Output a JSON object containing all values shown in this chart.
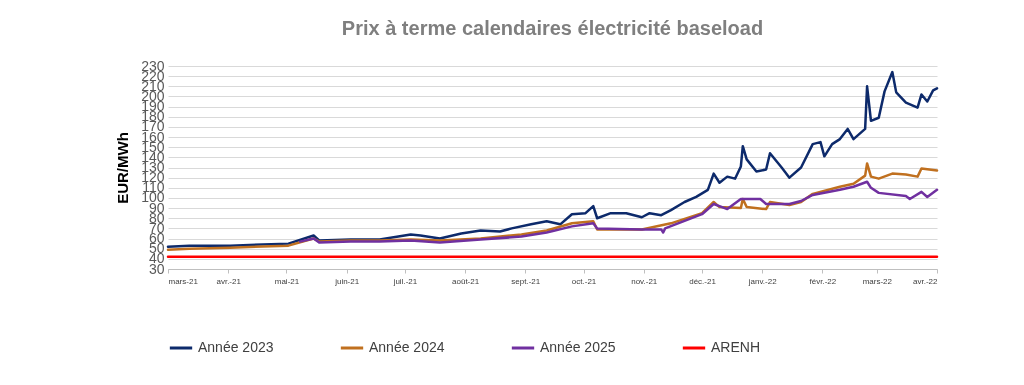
{
  "chart_data": {
    "type": "line",
    "title": "Prix à terme calendaires électricité baseload",
    "ylabel": "EUR/MWh",
    "xlim": [
      "2021-03-01",
      "2022-04-01"
    ],
    "xticks": [
      {
        "value": "2021-03-01",
        "label": "mars-21"
      },
      {
        "value": "2021-04-01",
        "label": "avr.-21"
      },
      {
        "value": "2021-05-01",
        "label": "mai-21"
      },
      {
        "value": "2021-06-01",
        "label": "juin-21"
      },
      {
        "value": "2021-07-01",
        "label": "juil.-21"
      },
      {
        "value": "2021-08-01",
        "label": "août-21"
      },
      {
        "value": "2021-09-01",
        "label": "sept.-21"
      },
      {
        "value": "2021-10-01",
        "label": "oct.-21"
      },
      {
        "value": "2021-11-01",
        "label": "nov.-21"
      },
      {
        "value": "2021-12-01",
        "label": "déc.-21"
      },
      {
        "value": "2022-01-01",
        "label": "janv.-22"
      },
      {
        "value": "2022-02-01",
        "label": "févr.-22"
      },
      {
        "value": "2022-03-01",
        "label": "mars-22"
      },
      {
        "value": "2022-04-01",
        "label": "avr.-22"
      }
    ],
    "ylim": [
      30,
      230
    ],
    "yticks": [
      30,
      40,
      50,
      60,
      70,
      80,
      90,
      100,
      110,
      120,
      130,
      140,
      150,
      160,
      170,
      180,
      190,
      200,
      210,
      220,
      230
    ],
    "grid": "y",
    "legend": "bottom",
    "series": [
      {
        "name": "Année 2023",
        "color": "#0d2a6b",
        "x": [
          "2021-03-01",
          "2021-03-12",
          "2021-04-02",
          "2021-05-02",
          "2021-05-15",
          "2021-05-18",
          "2021-06-03",
          "2021-06-18",
          "2021-07-04",
          "2021-07-09",
          "2021-07-19",
          "2021-07-30",
          "2021-08-09",
          "2021-08-19",
          "2021-08-25",
          "2021-09-04",
          "2021-09-12",
          "2021-09-19",
          "2021-09-25",
          "2021-10-02",
          "2021-10-06",
          "2021-10-08",
          "2021-10-15",
          "2021-10-23",
          "2021-10-31",
          "2021-11-04",
          "2021-11-10",
          "2021-11-15",
          "2021-11-22",
          "2021-11-28",
          "2021-12-04",
          "2021-12-07",
          "2021-12-10",
          "2021-12-14",
          "2021-12-18",
          "2021-12-21",
          "2021-12-22",
          "2021-12-24",
          "2021-12-29",
          "2022-01-03",
          "2022-01-05",
          "2022-01-11",
          "2022-01-15",
          "2022-01-21",
          "2022-01-27",
          "2022-01-31",
          "2022-02-02",
          "2022-02-06",
          "2022-02-10",
          "2022-02-14",
          "2022-02-17",
          "2022-02-23",
          "2022-02-24",
          "2022-02-26",
          "2022-03-02",
          "2022-03-05",
          "2022-03-09",
          "2022-03-11",
          "2022-03-16",
          "2022-03-22",
          "2022-03-24",
          "2022-03-27",
          "2022-03-30",
          "2022-04-01"
        ],
        "values": [
          52,
          53,
          53,
          55,
          63,
          58,
          59,
          59,
          64,
          63,
          60,
          65,
          68,
          67,
          70,
          74,
          77,
          74,
          84,
          85,
          92,
          80,
          85,
          85,
          81,
          85,
          83,
          88,
          96,
          101,
          108,
          124,
          115,
          121,
          119,
          131,
          151,
          138,
          126,
          128,
          144,
          130,
          120,
          130,
          153,
          155,
          141,
          153,
          158,
          168,
          158,
          168,
          210,
          176,
          179,
          205,
          224,
          204,
          194,
          189,
          202,
          195,
          206,
          208
        ]
      },
      {
        "name": "Année 2024",
        "color": "#c0701f",
        "x": [
          "2021-03-01",
          "2021-03-12",
          "2021-04-02",
          "2021-05-02",
          "2021-05-15",
          "2021-05-18",
          "2021-06-03",
          "2021-06-18",
          "2021-07-04",
          "2021-07-19",
          "2021-08-09",
          "2021-08-30",
          "2021-09-12",
          "2021-09-25",
          "2021-10-06",
          "2021-10-08",
          "2021-10-31",
          "2021-11-15",
          "2021-12-01",
          "2021-12-07",
          "2021-12-10",
          "2021-12-21",
          "2021-12-22",
          "2021-12-24",
          "2022-01-03",
          "2022-01-05",
          "2022-01-15",
          "2022-01-21",
          "2022-01-27",
          "2022-02-10",
          "2022-02-17",
          "2022-02-23",
          "2022-02-24",
          "2022-02-26",
          "2022-03-02",
          "2022-03-09",
          "2022-03-16",
          "2022-03-22",
          "2022-03-24",
          "2022-04-01"
        ],
        "values": [
          49,
          50,
          51,
          53,
          60,
          57,
          58,
          58,
          59,
          58,
          60,
          64,
          68,
          75,
          77,
          69,
          69,
          75,
          85,
          96,
          91,
          90,
          99,
          91,
          89,
          96,
          93,
          96,
          104,
          111,
          114,
          122,
          134,
          121,
          119,
          124,
          123,
          121,
          129,
          127
        ]
      },
      {
        "name": "Année 2025",
        "color": "#7030a0",
        "x": [
          "2021-05-08",
          "2021-05-15",
          "2021-05-18",
          "2021-06-03",
          "2021-06-18",
          "2021-07-04",
          "2021-07-19",
          "2021-08-09",
          "2021-08-30",
          "2021-09-12",
          "2021-09-25",
          "2021-10-06",
          "2021-10-08",
          "2021-10-31",
          "2021-11-10",
          "2021-11-11",
          "2021-11-12",
          "2021-12-01",
          "2021-12-07",
          "2021-12-10",
          "2021-12-14",
          "2021-12-21",
          "2021-12-31",
          "2022-01-03",
          "2022-01-15",
          "2022-01-21",
          "2022-01-27",
          "2022-02-10",
          "2022-02-17",
          "2022-02-24",
          "2022-02-26",
          "2022-03-02",
          "2022-03-16",
          "2022-03-18",
          "2022-03-24",
          "2022-03-27",
          "2022-04-01"
        ],
        "values": [
          57,
          60,
          56,
          57,
          57,
          58,
          56,
          59,
          62,
          66,
          72,
          75,
          70,
          69,
          69,
          66,
          70,
          84,
          94,
          92,
          89,
          99,
          99,
          94,
          94,
          97,
          103,
          108,
          111,
          116,
          110,
          105,
          102,
          99,
          106,
          101,
          108
        ]
      },
      {
        "name": "ARENH",
        "color": "#ff0000",
        "x": [
          "2021-03-01",
          "2022-04-01"
        ],
        "values": [
          42,
          42
        ]
      }
    ]
  }
}
